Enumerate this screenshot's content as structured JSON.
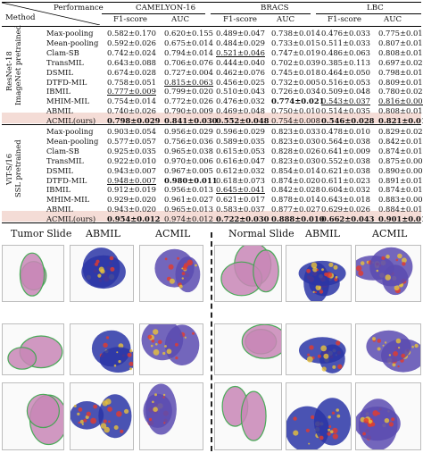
{
  "header": {
    "method": "Method",
    "performance": "Performance",
    "datasets": [
      "CAMELYON-16",
      "BRACS",
      "LBC"
    ],
    "metrics": [
      "F1-score",
      "AUC",
      "F1-score",
      "AUC",
      "F1-score",
      "AUC"
    ]
  },
  "groups": [
    {
      "label_line1": "ResNet-18",
      "label_line2": "ImageNet pretrained",
      "rows": [
        {
          "method": "Max-pooling",
          "values": [
            "0.582±0.170",
            "0.620±0.155",
            "0.489±0.047",
            "0.738±0.014",
            "0.476±0.033",
            "0.775±0.010"
          ],
          "styles": [
            "",
            "",
            "",
            "",
            "",
            ""
          ]
        },
        {
          "method": "Mean-pooling",
          "values": [
            "0.592±0.026",
            "0.675±0.014",
            "0.484±0.029",
            "0.733±0.015",
            "0.511±0.033",
            "0.807±0.010"
          ],
          "styles": [
            "",
            "",
            "",
            "",
            "",
            ""
          ]
        },
        {
          "method": "Clam-SB",
          "values": [
            "0.742±0.024",
            "0.794±0.014",
            "0.521±0.046",
            "0.747±0.019",
            "0.486±0.063",
            "0.808±0.010"
          ],
          "styles": [
            "",
            "",
            "u",
            "",
            "",
            ""
          ]
        },
        {
          "method": "TransMIL",
          "values": [
            "0.643±0.088",
            "0.706±0.076",
            "0.444±0.040",
            "0.702±0.039",
            "0.385±0.113",
            "0.697±0.028"
          ],
          "styles": [
            "",
            "",
            "",
            "",
            "",
            ""
          ]
        },
        {
          "method": "DSMIL",
          "values": [
            "0.674±0.028",
            "0.727±0.004",
            "0.462±0.076",
            "0.745±0.018",
            "0.464±0.050",
            "0.798±0.013"
          ],
          "styles": [
            "",
            "",
            "",
            "",
            "",
            ""
          ]
        },
        {
          "method": "DTFD-MIL",
          "values": [
            "0.758±0.051",
            "0.815±0.063",
            "0.456±0.025",
            "0.732±0.005",
            "0.516±0.053",
            "0.809±0.010"
          ],
          "styles": [
            "",
            "u",
            "",
            "",
            "",
            ""
          ]
        },
        {
          "method": "IBMIL",
          "values": [
            "0.777±0.009",
            "0.799±0.020",
            "0.510±0.043",
            "0.726±0.034",
            "0.509±0.048",
            "0.780±0.023"
          ],
          "styles": [
            "u",
            "",
            "",
            "",
            "",
            ""
          ]
        },
        {
          "method": "MHIM-MIL",
          "values": [
            "0.754±0.014",
            "0.772±0.026",
            "0.476±0.032",
            "0.774±0.021",
            "0.543±0.037",
            "0.816±0.009"
          ],
          "styles": [
            "",
            "",
            "",
            "b",
            "u",
            "u"
          ]
        },
        {
          "method": "ABMIL",
          "values": [
            "0.740±0.026",
            "0.790±0.009",
            "0.469±0.048",
            "0.750±0.010",
            "0.514±0.035",
            "0.808±0.013"
          ],
          "styles": [
            "",
            "",
            "",
            "",
            "",
            ""
          ]
        },
        {
          "method": "ACMIL(ours)",
          "values": [
            "0.798±0.029",
            "0.841±0.030",
            "0.552±0.048",
            "0.754±0.008",
            "0.546±0.028",
            "0.821±0.015"
          ],
          "styles": [
            "b",
            "b",
            "b",
            "u",
            "b",
            "b"
          ]
        }
      ]
    },
    {
      "label_line1": "ViT-S/16",
      "label_line2": "SSL pretrained",
      "rows": [
        {
          "method": "Max-pooling",
          "values": [
            "0.903±0.054",
            "0.956±0.029",
            "0.596±0.029",
            "0.823±0.033",
            "0.478±0.010",
            "0.829±0.023"
          ],
          "styles": [
            "",
            "",
            "",
            "",
            "",
            ""
          ]
        },
        {
          "method": "Mean-pooling",
          "values": [
            "0.577±0.057",
            "0.756±0.036",
            "0.589±0.035",
            "0.823±0.030",
            "0.564±0.038",
            "0.842±0.019"
          ],
          "styles": [
            "",
            "",
            "",
            "",
            "",
            ""
          ]
        },
        {
          "method": "Clam-SB",
          "values": [
            "0.925±0.035",
            "0.965±0.038",
            "0.615±0.053",
            "0.828±0.026",
            "0.641±0.009",
            "0.874±0.016"
          ],
          "styles": [
            "",
            "",
            "",
            "",
            "",
            ""
          ]
        },
        {
          "method": "TransMIL",
          "values": [
            "0.922±0.010",
            "0.970±0.006",
            "0.616±0.047",
            "0.823±0.030",
            "0.552±0.038",
            "0.875±0.009"
          ],
          "styles": [
            "",
            "",
            "",
            "",
            "",
            ""
          ]
        },
        {
          "method": "DSMIL",
          "values": [
            "0.943±0.007",
            "0.967±0.005",
            "0.612±0.032",
            "0.854±0.014",
            "0.621±0.038",
            "0.890±0.003"
          ],
          "styles": [
            "",
            "",
            "",
            "",
            "",
            ""
          ]
        },
        {
          "method": "DTFD-MIL",
          "values": [
            "0.948±0.007",
            "0.980±0.011",
            "0.618±0.073",
            "0.874±0.020",
            "0.611±0.023",
            "0.891±0.013"
          ],
          "styles": [
            "u",
            "b",
            "",
            "",
            "",
            ""
          ]
        },
        {
          "method": "IBMIL",
          "values": [
            "0.912±0.019",
            "0.956±0.013",
            "0.645±0.041",
            "0.842±0.028",
            "0.604±0.032",
            "0.874±0.019"
          ],
          "styles": [
            "",
            "",
            "u",
            "",
            "",
            ""
          ]
        },
        {
          "method": "MHIM-MIL",
          "values": [
            "0.929±0.020",
            "0.961±0.027",
            "0.621±0.017",
            "0.878±0.014",
            "0.643±0.018",
            "0.883±0.008"
          ],
          "styles": [
            "",
            "",
            "",
            "",
            "",
            ""
          ]
        },
        {
          "method": "ABMIL",
          "values": [
            "0.943±0.020",
            "0.965±0.013",
            "0.583±0.037",
            "0.877±0.027",
            "0.629±0.026",
            "0.884±0.010"
          ],
          "styles": [
            "",
            "",
            "",
            "",
            "",
            ""
          ]
        },
        {
          "method": "ACMIL(ours)",
          "values": [
            "0.954±0.012",
            "0.974±0.012",
            "0.722±0.030",
            "0.888±0.010",
            "0.662±0.043",
            "0.901±0.011"
          ],
          "styles": [
            "b",
            "u",
            "b",
            "b",
            "b",
            "b"
          ]
        }
      ]
    }
  ],
  "figure": {
    "left_titles": [
      "Tumor Slide",
      "ABMIL",
      "ACMIL"
    ],
    "right_titles": [
      "Normal Slide",
      "ABMIL",
      "ACMIL"
    ]
  },
  "colors": {
    "highlight_row": "#f4dcd6",
    "heat_high": "#e53b2a",
    "heat_low": "#2a35a6",
    "tissue": "#c886b6"
  }
}
